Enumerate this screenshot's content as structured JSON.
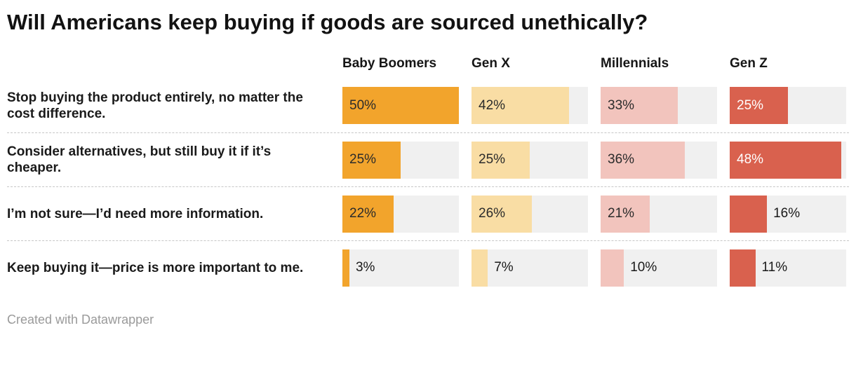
{
  "title": "Will Americans keep buying if goods are sourced unethically?",
  "footer": "Created with Datawrapper",
  "chart_data": {
    "type": "bar",
    "title": "Will Americans keep buying if goods are sourced unethically?",
    "layout": "horizontal-bars-small-multiples",
    "value_suffix": "%",
    "xlim": [
      0,
      50
    ],
    "grid": false,
    "track_color": "#f0f0f0",
    "categories": [
      "Stop buying the product entirely, no matter the cost difference.",
      "Consider alternatives, but still buy it if it’s cheaper.",
      "I’m not sure—I’d need more information.",
      "Keep buying it—price is more important to me."
    ],
    "series": [
      {
        "name": "Baby Boomers",
        "color": "#F2A42C",
        "label_color": "#2b2b2b",
        "values": [
          50,
          25,
          22,
          3
        ]
      },
      {
        "name": "Gen X",
        "color": "#F9DDA4",
        "label_color": "#2b2b2b",
        "values": [
          42,
          25,
          26,
          7
        ]
      },
      {
        "name": "Millennials",
        "color": "#F2C4BD",
        "label_color": "#2b2b2b",
        "values": [
          33,
          36,
          21,
          10
        ]
      },
      {
        "name": "Gen Z",
        "color": "#D9614E",
        "label_color": "#ffffff",
        "values": [
          25,
          48,
          16,
          11
        ]
      }
    ]
  }
}
